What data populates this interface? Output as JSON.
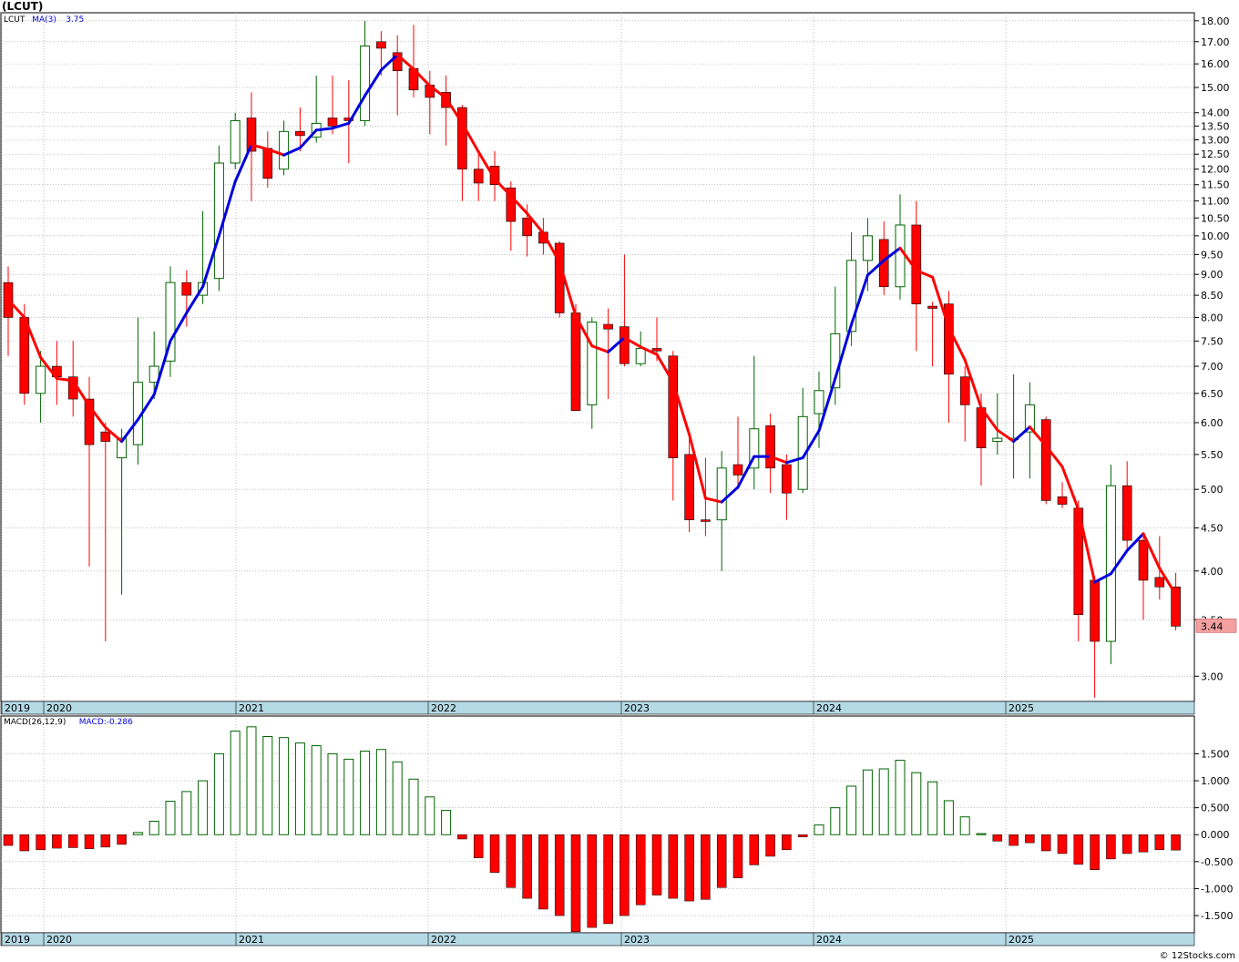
{
  "header": {
    "ticker": "(LCUT)"
  },
  "watermark": "© 12Stocks.com",
  "colors": {
    "up": "#006400",
    "down": "#ff0000",
    "ma_up": "#0000dd",
    "ma_down": "#ff0000",
    "band": "#b4dae6",
    "grid": "#9a9a9a",
    "price_badge": "#f4a0a0"
  },
  "chart_data": [
    {
      "type": "candlestick",
      "scale": "log",
      "legend": [
        {
          "text": "LCUT",
          "color": "#000000"
        },
        {
          "text": "MA(3)",
          "color": "#0000dd"
        },
        {
          "text": "3.75",
          "color": "#0000dd"
        }
      ],
      "x_labels": [
        "2019",
        "2020",
        "2021",
        "2022",
        "2023",
        "2024",
        "2025"
      ],
      "y_ticks": [
        "18.00",
        "17.00",
        "16.00",
        "15.00",
        "14.00",
        "13.50",
        "13.00",
        "12.50",
        "12.00",
        "11.50",
        "11.00",
        "10.50",
        "10.00",
        "9.50",
        "9.00",
        "8.50",
        "8.00",
        "7.50",
        "7.00",
        "6.50",
        "6.00",
        "5.50",
        "5.00",
        "4.50",
        "4.00",
        "3.50",
        "3.00"
      ],
      "last_price": "3.44",
      "ylim": [
        2.8,
        18.4
      ],
      "grid": true,
      "candles": [
        {
          "o": 8.8,
          "h": 9.2,
          "l": 7.2,
          "c": 8.0
        },
        {
          "o": 8.0,
          "h": 8.3,
          "l": 6.3,
          "c": 6.5
        },
        {
          "o": 6.5,
          "h": 7.3,
          "l": 6.0,
          "c": 7.0
        },
        {
          "o": 7.0,
          "h": 7.5,
          "l": 6.3,
          "c": 6.8
        },
        {
          "o": 6.8,
          "h": 7.5,
          "l": 6.1,
          "c": 6.4
        },
        {
          "o": 6.4,
          "h": 6.8,
          "l": 4.05,
          "c": 5.65
        },
        {
          "o": 5.85,
          "h": 6.0,
          "l": 3.3,
          "c": 5.7
        },
        {
          "o": 5.45,
          "h": 5.9,
          "l": 3.75,
          "c": 5.75
        },
        {
          "o": 5.65,
          "h": 8.0,
          "l": 5.35,
          "c": 6.7
        },
        {
          "o": 6.7,
          "h": 7.7,
          "l": 6.4,
          "c": 7.0
        },
        {
          "o": 7.1,
          "h": 9.2,
          "l": 6.8,
          "c": 8.8
        },
        {
          "o": 8.8,
          "h": 9.1,
          "l": 7.8,
          "c": 8.5
        },
        {
          "o": 8.5,
          "h": 10.7,
          "l": 8.3,
          "c": 8.8
        },
        {
          "o": 8.9,
          "h": 12.8,
          "l": 8.6,
          "c": 12.2
        },
        {
          "o": 12.2,
          "h": 14.0,
          "l": 12.0,
          "c": 13.7
        },
        {
          "o": 13.8,
          "h": 14.8,
          "l": 11.0,
          "c": 12.6
        },
        {
          "o": 12.7,
          "h": 13.3,
          "l": 11.4,
          "c": 11.7
        },
        {
          "o": 12.0,
          "h": 13.7,
          "l": 11.8,
          "c": 13.3
        },
        {
          "o": 13.3,
          "h": 14.2,
          "l": 12.6,
          "c": 13.15
        },
        {
          "o": 13.1,
          "h": 15.5,
          "l": 12.9,
          "c": 13.6
        },
        {
          "o": 13.8,
          "h": 15.5,
          "l": 13.2,
          "c": 13.5
        },
        {
          "o": 13.8,
          "h": 15.3,
          "l": 12.2,
          "c": 13.7
        },
        {
          "o": 13.7,
          "h": 18.0,
          "l": 13.5,
          "c": 16.8
        },
        {
          "o": 17.0,
          "h": 17.5,
          "l": 15.5,
          "c": 16.7
        },
        {
          "o": 16.5,
          "h": 17.3,
          "l": 13.9,
          "c": 15.7
        },
        {
          "o": 15.8,
          "h": 17.8,
          "l": 14.6,
          "c": 14.9
        },
        {
          "o": 15.1,
          "h": 15.7,
          "l": 13.2,
          "c": 14.6
        },
        {
          "o": 14.8,
          "h": 15.5,
          "l": 12.8,
          "c": 14.2
        },
        {
          "o": 14.2,
          "h": 14.3,
          "l": 11.0,
          "c": 12.0
        },
        {
          "o": 12.0,
          "h": 12.5,
          "l": 11.0,
          "c": 11.55
        },
        {
          "o": 12.1,
          "h": 12.6,
          "l": 11.0,
          "c": 11.5
        },
        {
          "o": 11.4,
          "h": 11.6,
          "l": 9.6,
          "c": 10.4
        },
        {
          "o": 10.5,
          "h": 10.9,
          "l": 9.45,
          "c": 10.0
        },
        {
          "o": 10.1,
          "h": 10.5,
          "l": 9.5,
          "c": 9.8
        },
        {
          "o": 9.8,
          "h": 9.85,
          "l": 8.0,
          "c": 8.1
        },
        {
          "o": 8.1,
          "h": 8.3,
          "l": 6.2,
          "c": 6.2
        },
        {
          "o": 6.3,
          "h": 8.0,
          "l": 5.9,
          "c": 7.9
        },
        {
          "o": 7.85,
          "h": 8.2,
          "l": 6.4,
          "c": 7.75
        },
        {
          "o": 7.8,
          "h": 9.5,
          "l": 7.0,
          "c": 7.05
        },
        {
          "o": 7.05,
          "h": 7.7,
          "l": 7.0,
          "c": 7.35
        },
        {
          "o": 7.35,
          "h": 8.0,
          "l": 7.1,
          "c": 7.3
        },
        {
          "o": 7.2,
          "h": 7.3,
          "l": 4.85,
          "c": 5.45
        },
        {
          "o": 5.5,
          "h": 5.75,
          "l": 4.45,
          "c": 4.6
        },
        {
          "o": 4.6,
          "h": 5.45,
          "l": 4.4,
          "c": 4.58
        },
        {
          "o": 4.6,
          "h": 5.55,
          "l": 4.0,
          "c": 5.3
        },
        {
          "o": 5.35,
          "h": 6.1,
          "l": 5.0,
          "c": 5.2
        },
        {
          "o": 5.3,
          "h": 7.2,
          "l": 5.0,
          "c": 5.9
        },
        {
          "o": 5.95,
          "h": 6.15,
          "l": 4.95,
          "c": 5.3
        },
        {
          "o": 5.35,
          "h": 5.5,
          "l": 4.6,
          "c": 4.95
        },
        {
          "o": 5.0,
          "h": 6.6,
          "l": 4.95,
          "c": 6.1
        },
        {
          "o": 6.15,
          "h": 6.9,
          "l": 5.6,
          "c": 6.55
        },
        {
          "o": 6.6,
          "h": 8.7,
          "l": 6.3,
          "c": 7.65
        },
        {
          "o": 7.7,
          "h": 10.1,
          "l": 7.4,
          "c": 9.35
        },
        {
          "o": 9.35,
          "h": 10.5,
          "l": 8.6,
          "c": 10.0
        },
        {
          "o": 9.9,
          "h": 10.4,
          "l": 8.5,
          "c": 8.7
        },
        {
          "o": 8.7,
          "h": 11.2,
          "l": 8.4,
          "c": 10.3
        },
        {
          "o": 10.3,
          "h": 11.0,
          "l": 7.3,
          "c": 8.3
        },
        {
          "o": 8.25,
          "h": 8.35,
          "l": 7.0,
          "c": 8.2
        },
        {
          "o": 8.3,
          "h": 8.6,
          "l": 6.0,
          "c": 6.85
        },
        {
          "o": 6.8,
          "h": 7.0,
          "l": 5.7,
          "c": 6.3
        },
        {
          "o": 6.25,
          "h": 6.5,
          "l": 5.05,
          "c": 5.6
        },
        {
          "o": 5.7,
          "h": 6.5,
          "l": 5.5,
          "c": 5.75
        },
        {
          "o": 5.75,
          "h": 6.85,
          "l": 5.15,
          "c": 5.75
        },
        {
          "o": 5.85,
          "h": 6.7,
          "l": 5.15,
          "c": 6.3
        },
        {
          "o": 6.05,
          "h": 6.1,
          "l": 4.8,
          "c": 4.85
        },
        {
          "o": 4.9,
          "h": 5.1,
          "l": 4.75,
          "c": 4.8
        },
        {
          "o": 4.75,
          "h": 4.85,
          "l": 3.3,
          "c": 3.55
        },
        {
          "o": 3.9,
          "h": 3.95,
          "l": 2.83,
          "c": 3.3
        },
        {
          "o": 3.3,
          "h": 5.35,
          "l": 3.1,
          "c": 5.05
        },
        {
          "o": 5.05,
          "h": 5.4,
          "l": 4.25,
          "c": 4.35
        },
        {
          "o": 4.35,
          "h": 4.4,
          "l": 3.5,
          "c": 3.9
        },
        {
          "o": 3.93,
          "h": 4.4,
          "l": 3.7,
          "c": 3.83
        },
        {
          "o": 3.83,
          "h": 3.98,
          "l": 3.4,
          "c": 3.44
        }
      ],
      "ma": [
        8.4,
        8.0,
        7.17,
        6.77,
        6.73,
        6.28,
        5.92,
        5.7,
        6.05,
        6.48,
        7.5,
        8.1,
        8.7,
        10.0,
        11.6,
        12.83,
        12.67,
        12.47,
        12.72,
        13.35,
        13.42,
        13.6,
        14.67,
        15.73,
        16.4,
        15.77,
        15.07,
        14.57,
        13.6,
        12.58,
        11.68,
        11.15,
        10.63,
        10.07,
        9.3,
        8.03,
        7.4,
        7.28,
        7.57,
        7.38,
        7.23,
        6.7,
        5.81,
        4.88,
        4.83,
        5.03,
        5.47,
        5.47,
        5.38,
        5.45,
        5.87,
        6.77,
        7.85,
        8.98,
        9.35,
        9.67,
        9.1,
        8.93,
        7.78,
        7.12,
        6.25,
        5.88,
        5.7,
        5.93,
        5.63,
        5.32,
        4.73,
        3.88,
        3.97,
        4.23,
        4.43,
        4.03,
        3.75
      ],
      "ma_label": "MA(3)"
    },
    {
      "type": "bar",
      "legend": [
        {
          "text": "MACD(26,12,9)",
          "color": "#000000"
        },
        {
          "text": "MACD:-0.286",
          "color": "#0000dd"
        }
      ],
      "x_labels": [
        "2019",
        "2020",
        "2021",
        "2022",
        "2023",
        "2024",
        "2025"
      ],
      "y_ticks": [
        "1.500",
        "1.000",
        "0.500",
        "0.000",
        "-0.500",
        "-1.000",
        "-1.500"
      ],
      "ylim": [
        -1.82,
        2.2
      ],
      "values": [
        -0.2,
        -0.3,
        -0.28,
        -0.25,
        -0.24,
        -0.26,
        -0.23,
        -0.18,
        0.04,
        0.25,
        0.62,
        0.8,
        1.0,
        1.5,
        1.92,
        2.0,
        1.82,
        1.8,
        1.7,
        1.65,
        1.5,
        1.4,
        1.55,
        1.58,
        1.35,
        1.03,
        0.7,
        0.45,
        -0.08,
        -0.43,
        -0.7,
        -0.98,
        -1.18,
        -1.38,
        -1.5,
        -1.8,
        -1.72,
        -1.65,
        -1.5,
        -1.3,
        -1.12,
        -1.18,
        -1.23,
        -1.2,
        -0.98,
        -0.8,
        -0.56,
        -0.4,
        -0.28,
        -0.04,
        0.18,
        0.5,
        0.9,
        1.2,
        1.22,
        1.38,
        1.15,
        0.98,
        0.63,
        0.33,
        0.02,
        -0.12,
        -0.2,
        -0.15,
        -0.3,
        -0.35,
        -0.55,
        -0.65,
        -0.45,
        -0.35,
        -0.32,
        -0.28,
        -0.286
      ]
    }
  ]
}
